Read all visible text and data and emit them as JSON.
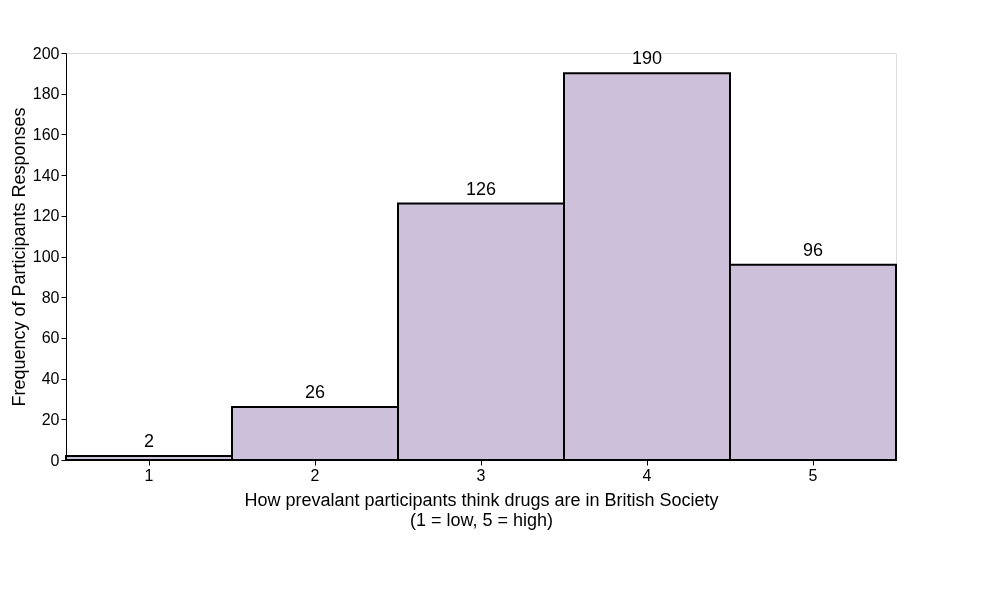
{
  "chart_data": {
    "type": "bar",
    "xlabel": "How prevalant participants think drugs are in British Society\n(1 = low, 5 = high)",
    "ylabel": "Frequency of Participants Responses",
    "categories": [
      "1",
      "2",
      "3",
      "4",
      "5"
    ],
    "values": [
      2,
      26,
      126,
      190,
      96
    ],
    "color": "#ccc0da",
    "ylim": [
      0,
      200
    ],
    "yticks": [
      0,
      20,
      40,
      60,
      80,
      100,
      120,
      140,
      160,
      180,
      200
    ],
    "grid": false,
    "data_labels": true
  }
}
